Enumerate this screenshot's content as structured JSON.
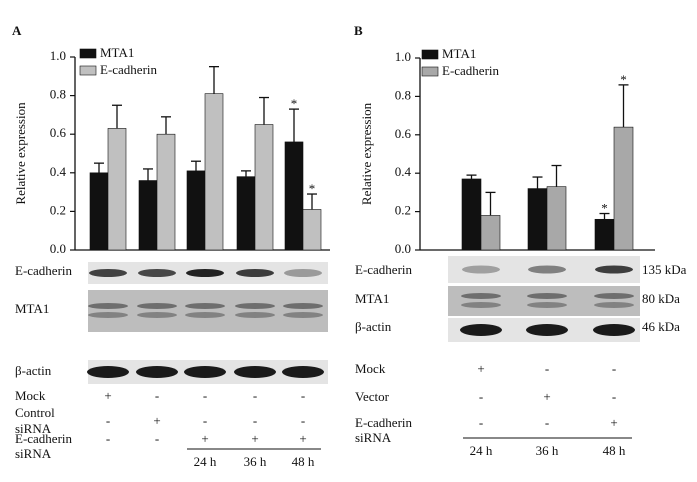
{
  "chart_data": [
    {
      "type": "bar",
      "panel_label": "A",
      "ylabel": "Relative expression",
      "categories": [
        null,
        null,
        null,
        null,
        null
      ],
      "series": [
        {
          "name": "MTA1",
          "color": "#111111",
          "values": [
            0.4,
            0.36,
            0.41,
            0.38,
            0.56
          ],
          "errors": [
            0.05,
            0.06,
            0.05,
            0.03,
            0.17
          ],
          "value_annotations": [
            null,
            null,
            null,
            null,
            "*"
          ]
        },
        {
          "name": "E-cadherin",
          "color": "#c0c0c0",
          "values": [
            0.63,
            0.6,
            0.81,
            0.65,
            0.21
          ],
          "errors": [
            0.12,
            0.09,
            0.14,
            0.14,
            0.08
          ],
          "value_annotations": [
            null,
            null,
            null,
            null,
            "*"
          ]
        }
      ],
      "ylim": [
        0,
        1
      ],
      "yticks": [
        {
          "value": 0,
          "label": "0.0"
        },
        0.2,
        0.4,
        0.6,
        0.8,
        {
          "value": 1,
          "label": "1.0"
        }
      ],
      "blot_labels": [
        "E-cadherin",
        "MTA1",
        "β-actin"
      ],
      "treatments": [
        {
          "label": [
            "Mock"
          ],
          "marks": [
            "+",
            "-",
            "-",
            "-",
            "-"
          ]
        },
        {
          "label": [
            "Control",
            "siRNA"
          ],
          "marks": [
            "-",
            "+",
            "-",
            "-",
            "-"
          ]
        },
        {
          "label": [
            "E-cadherin",
            "siRNA"
          ],
          "marks": [
            "-",
            "-",
            "+",
            "+",
            "+"
          ]
        }
      ],
      "timepoints": [
        "24 h",
        "36 h",
        "48 h"
      ]
    },
    {
      "type": "bar",
      "panel_label": "B",
      "ylabel": "Relative expression",
      "categories": [
        null,
        null,
        null
      ],
      "series": [
        {
          "name": "MTA1",
          "color": "#111111",
          "values": [
            0.37,
            0.32,
            0.16
          ],
          "errors": [
            0.02,
            0.06,
            0.03
          ],
          "value_annotations": [
            null,
            null,
            "*"
          ]
        },
        {
          "name": "E-cadherin",
          "color": "#a8a8a8",
          "values": [
            0.18,
            0.33,
            0.64
          ],
          "errors": [
            0.12,
            0.11,
            0.22
          ],
          "value_annotations": [
            null,
            null,
            "*"
          ]
        }
      ],
      "ylim": [
        0,
        1
      ],
      "yticks": [
        {
          "value": 0,
          "label": "0.0"
        },
        0.2,
        0.4,
        0.6,
        0.8,
        {
          "value": 1,
          "label": "1.0"
        }
      ],
      "blot_labels": [
        "E-cadherin",
        "MTA1",
        "β-actin"
      ],
      "band_sizes": [
        "135 kDa",
        "80 kDa",
        "46 kDa"
      ],
      "treatments": [
        {
          "label": [
            "Mock"
          ],
          "marks": [
            "+",
            "-",
            "-"
          ]
        },
        {
          "label": [
            "Vector"
          ],
          "marks": [
            "-",
            "+",
            "-"
          ]
        },
        {
          "label": [
            "E-cadherin",
            "siRNA"
          ],
          "marks": [
            "-",
            "-",
            "+"
          ]
        }
      ],
      "timepoints": [
        "24 h",
        "36 h",
        "48 h"
      ]
    }
  ]
}
